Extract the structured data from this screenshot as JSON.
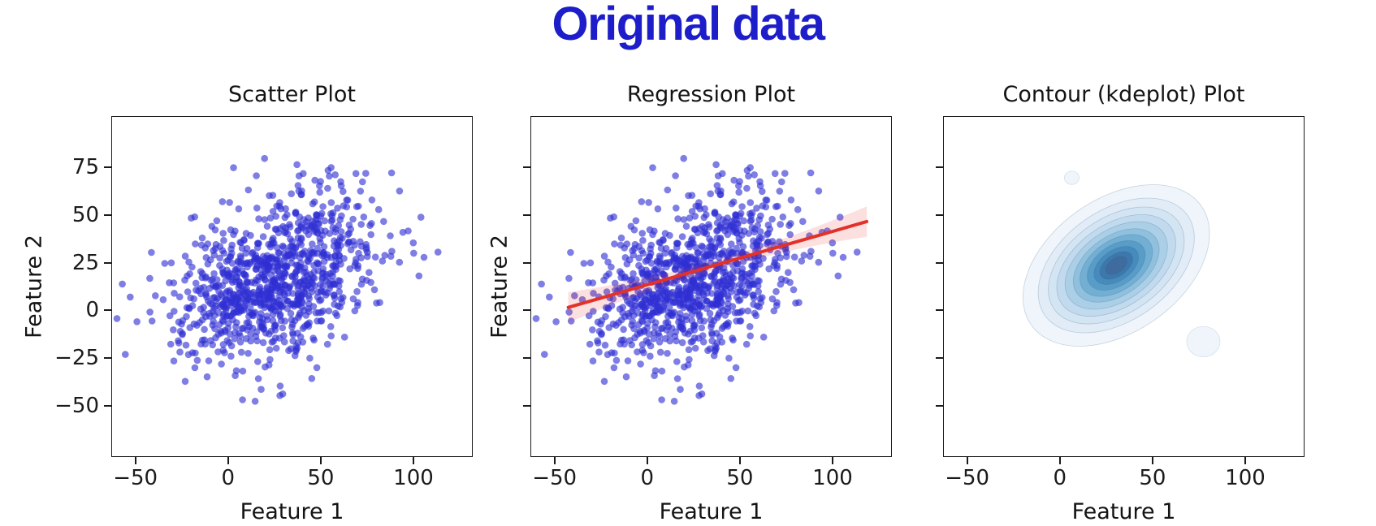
{
  "page": {
    "title": "Original data",
    "title_color": "#1d1dca",
    "background": "#ffffff"
  },
  "figure": {
    "grid": false,
    "legend": null
  },
  "chart_data": [
    {
      "type": "scatter",
      "title": "Scatter Plot",
      "xlabel": "Feature 1",
      "ylabel": "Feature 2",
      "xlim": [
        -63,
        132
      ],
      "ylim": [
        -77,
        102
      ],
      "xticks": [
        {
          "v": -50,
          "label": "−50"
        },
        {
          "v": 0,
          "label": "0"
        },
        {
          "v": 50,
          "label": "50"
        },
        {
          "v": 100,
          "label": "100"
        }
      ],
      "yticks": [
        {
          "v": 75,
          "label": "75"
        },
        {
          "v": 50,
          "label": "50"
        },
        {
          "v": 25,
          "label": "25"
        },
        {
          "v": 0,
          "label": "0"
        },
        {
          "v": -25,
          "label": "−25"
        },
        {
          "v": -50,
          "label": "−50"
        }
      ],
      "show_ytick_labels": true,
      "points": {
        "n": 1000,
        "mean": [
          25,
          18
        ],
        "std": [
          26,
          22
        ],
        "corr": 0.42,
        "seed": 7,
        "color": "#2e2ed4",
        "opacity": 0.62,
        "radius": 4.3
      }
    },
    {
      "type": "scatter-regression",
      "title": "Regression Plot",
      "xlabel": "Feature 1",
      "ylabel": "Feature 2",
      "xlim": [
        -63,
        132
      ],
      "ylim": [
        -77,
        102
      ],
      "xticks": [
        {
          "v": -50,
          "label": "−50"
        },
        {
          "v": 0,
          "label": "0"
        },
        {
          "v": 50,
          "label": "50"
        },
        {
          "v": 100,
          "label": "100"
        }
      ],
      "yticks": [
        {
          "v": 75,
          "label": ""
        },
        {
          "v": 50,
          "label": ""
        },
        {
          "v": 25,
          "label": ""
        },
        {
          "v": 0,
          "label": ""
        },
        {
          "v": -25,
          "label": ""
        },
        {
          "v": -50,
          "label": ""
        }
      ],
      "show_ytick_labels": false,
      "points": {
        "n": 1000,
        "mean": [
          25,
          18
        ],
        "std": [
          26,
          22
        ],
        "corr": 0.42,
        "seed": 7,
        "color": "#2e2ed4",
        "opacity": 0.62,
        "radius": 4.3
      },
      "regression": {
        "x_start": -43,
        "x_end": 118,
        "slope": 0.28,
        "intercept": 14,
        "line_color": "#e3312a",
        "line_width": 4,
        "band_color": "#e3312a",
        "band_opacity": 0.15,
        "band_halfwidth_center": 2.5,
        "band_halfwidth_end": 8
      }
    },
    {
      "type": "kde-contour",
      "title": "Contour (kdeplot) Plot",
      "xlabel": "Feature 1",
      "ylabel": "",
      "xlim": [
        -63,
        132
      ],
      "ylim": [
        -77,
        102
      ],
      "xticks": [
        {
          "v": -50,
          "label": "−50"
        },
        {
          "v": 0,
          "label": "0"
        },
        {
          "v": 50,
          "label": "50"
        },
        {
          "v": 100,
          "label": "100"
        }
      ],
      "yticks": [
        {
          "v": 75,
          "label": ""
        },
        {
          "v": 50,
          "label": ""
        },
        {
          "v": 25,
          "label": ""
        },
        {
          "v": 0,
          "label": ""
        },
        {
          "v": -25,
          "label": ""
        },
        {
          "v": -50,
          "label": ""
        }
      ],
      "show_ytick_labels": false,
      "kde": {
        "center": [
          30,
          24
        ],
        "angle_deg": -35,
        "colormap": "Blues",
        "levels": [
          {
            "a": 56,
            "b": 35,
            "color": "#eff5fb"
          },
          {
            "a": 47,
            "b": 29,
            "color": "#e1ecf7"
          },
          {
            "a": 41,
            "b": 25,
            "color": "#d3e4f3"
          },
          {
            "a": 36,
            "b": 21.5,
            "color": "#c2daee"
          },
          {
            "a": 31,
            "b": 18.5,
            "color": "#abcfe6"
          },
          {
            "a": 26,
            "b": 15.5,
            "color": "#8fc0dd"
          },
          {
            "a": 22,
            "b": 13,
            "color": "#72afd3"
          },
          {
            "a": 17.5,
            "b": 10.5,
            "color": "#589dc8"
          },
          {
            "a": 13.5,
            "b": 8,
            "color": "#468bbc"
          },
          {
            "a": 10,
            "b": 5.7,
            "color": "#3c78ab"
          },
          {
            "a": 6.5,
            "b": 3.7,
            "color": "#3f6b9e"
          }
        ],
        "satellites": [
          {
            "cx": 6,
            "cy": 70,
            "a": 4,
            "b": 3.5,
            "angle": 0,
            "color": "#eff5fb"
          },
          {
            "cx": 77,
            "cy": -16,
            "a": 9,
            "b": 8,
            "angle": 0,
            "color": "#eff5fb"
          },
          {
            "cx": 10,
            "cy": 0,
            "a": 22,
            "b": 13,
            "angle": -20,
            "color": "#eff5fb"
          },
          {
            "cx": 54,
            "cy": 48,
            "a": 19,
            "b": 12,
            "angle": -30,
            "color": "#eff5fb"
          },
          {
            "cx": -6,
            "cy": 12,
            "a": 13,
            "b": 9,
            "angle": -10,
            "color": "#eff5fb"
          }
        ]
      }
    }
  ]
}
